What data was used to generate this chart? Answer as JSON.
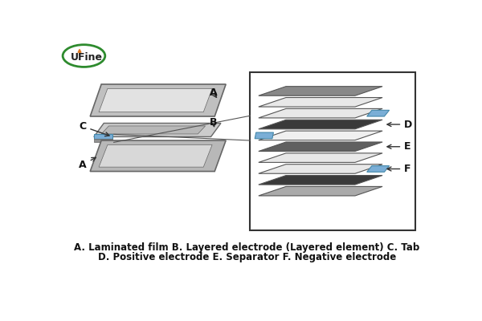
{
  "bg_color": "#ffffff",
  "title_text1": "A. Laminated film B. Layered electrode (Layered element) C. Tab",
  "title_text2": "D. Positive electrode E. Separator F. Negative electrode",
  "logo_text": "UFine",
  "logo_green": "#2e8b2e",
  "logo_orange": "#e07820",
  "box_edge_color": "#333333",
  "layer_configs": [
    {
      "color": "#888888",
      "tab": null,
      "tab_side": null
    },
    {
      "color": "#e8e8e8",
      "tab": null,
      "tab_side": null
    },
    {
      "color": "#e8e8e8",
      "tab": true,
      "tab_side": "right"
    },
    {
      "color": "#3a3a3a",
      "tab": null,
      "tab_side": null
    },
    {
      "color": "#f0f0f0",
      "tab": true,
      "tab_side": "left"
    },
    {
      "color": "#606060",
      "tab": null,
      "tab_side": null
    },
    {
      "color": "#e8e8e8",
      "tab": null,
      "tab_side": null
    },
    {
      "color": "#e8e8e8",
      "tab": true,
      "tab_side": "right"
    },
    {
      "color": "#3a3a3a",
      "tab": null,
      "tab_side": null
    },
    {
      "color": "#aaaaaa",
      "tab": null,
      "tab_side": null
    }
  ],
  "label_configs": [
    {
      "label": "D",
      "layer_idx": 3
    },
    {
      "label": "E",
      "layer_idx": 5
    },
    {
      "label": "F",
      "layer_idx": 7
    }
  ],
  "tab_color": "#7aaed6",
  "tab_edge_color": "#4488aa",
  "arrow_color": "#333333"
}
